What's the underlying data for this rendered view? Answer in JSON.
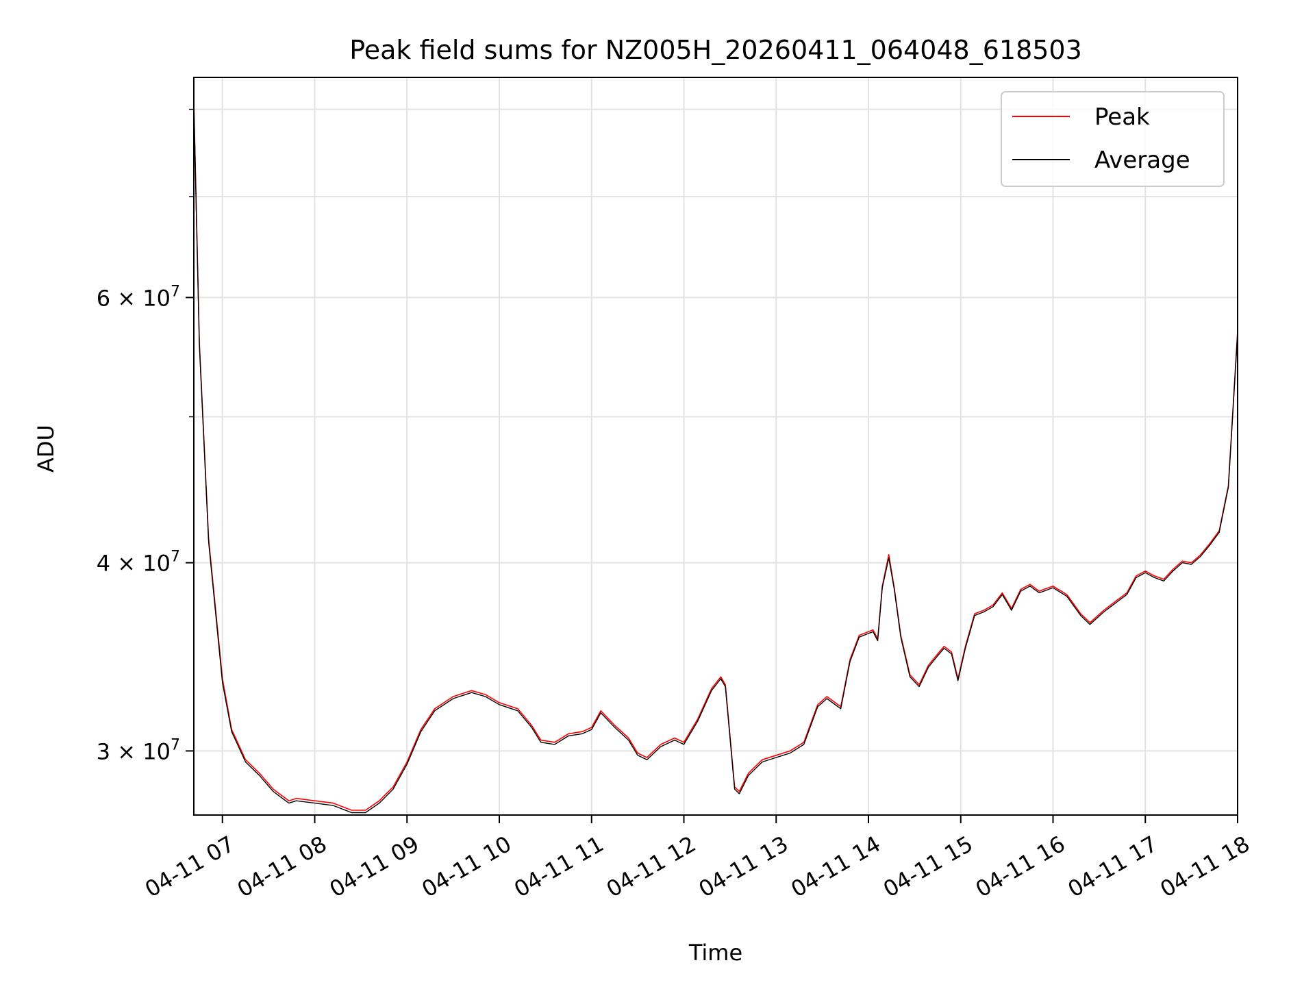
{
  "chart_data": {
    "type": "line",
    "title": "Peak field sums for NZ005H_20260411_064048_618503",
    "xlabel": "Time",
    "ylabel": "ADU",
    "yscale": "log",
    "grid": true,
    "legend_position": "top-right",
    "x_unit": "hours since 2026-04-11 00:00",
    "xlim": [
      6.69,
      18.0
    ],
    "ylim": [
      27200000,
      84000000
    ],
    "x_ticks": [
      7,
      8,
      9,
      10,
      11,
      12,
      13,
      14,
      15,
      16,
      17,
      18
    ],
    "x_tick_labels": [
      "04-11 07",
      "04-11 08",
      "04-11 09",
      "04-11 10",
      "04-11 11",
      "04-11 12",
      "04-11 13",
      "04-11 14",
      "04-11 15",
      "04-11 16",
      "04-11 17",
      "04-11 18"
    ],
    "y_ticks": [
      {
        "value": 30000000,
        "mantissa": "3",
        "exponent": "7"
      },
      {
        "value": 40000000,
        "mantissa": "4",
        "exponent": "7"
      },
      {
        "value": 60000000,
        "mantissa": "6",
        "exponent": "7"
      }
    ],
    "y_minor_ticks": [
      50000000,
      70000000,
      80000000
    ],
    "times_symbol": "×",
    "base_ten": "10",
    "series": [
      {
        "name": "Peak",
        "color": "#ff0000",
        "x": [
          6.69,
          6.75,
          6.85,
          7.0,
          7.1,
          7.25,
          7.4,
          7.55,
          7.65,
          7.72,
          7.8,
          8.0,
          8.2,
          8.4,
          8.55,
          8.7,
          8.85,
          9.0,
          9.15,
          9.3,
          9.5,
          9.7,
          9.85,
          10.0,
          10.2,
          10.35,
          10.45,
          10.6,
          10.75,
          10.9,
          11.0,
          11.1,
          11.25,
          11.4,
          11.5,
          11.6,
          11.75,
          11.9,
          12.0,
          12.15,
          12.3,
          12.4,
          12.45,
          12.55,
          12.6,
          12.7,
          12.85,
          13.0,
          13.15,
          13.3,
          13.45,
          13.55,
          13.7,
          13.8,
          13.9,
          14.0,
          14.05,
          14.1,
          14.15,
          14.22,
          14.28,
          14.35,
          14.45,
          14.55,
          14.65,
          14.75,
          14.82,
          14.9,
          14.97,
          15.05,
          15.15,
          15.25,
          15.35,
          15.45,
          15.55,
          15.65,
          15.75,
          15.85,
          16.0,
          16.15,
          16.3,
          16.4,
          16.55,
          16.7,
          16.8,
          16.9,
          17.0,
          17.1,
          17.2,
          17.3,
          17.4,
          17.5,
          17.6,
          17.7,
          17.8,
          17.9,
          18.0
        ],
        "y": [
          81000000,
          56000000,
          41500000,
          33500000,
          31000000,
          29600000,
          29000000,
          28300000,
          28000000,
          27800000,
          27900000,
          27800000,
          27700000,
          27400000,
          27400000,
          27800000,
          28400000,
          29500000,
          31000000,
          32000000,
          32600000,
          32900000,
          32700000,
          32300000,
          32000000,
          31200000,
          30500000,
          30400000,
          30800000,
          30900000,
          31100000,
          31900000,
          31200000,
          30600000,
          29900000,
          29700000,
          30300000,
          30600000,
          30400000,
          31500000,
          33000000,
          33600000,
          33200000,
          28400000,
          28200000,
          29000000,
          29600000,
          29800000,
          30000000,
          30400000,
          32200000,
          32600000,
          32100000,
          34500000,
          35800000,
          36000000,
          36100000,
          35600000,
          38600000,
          40500000,
          38500000,
          35800000,
          33700000,
          33200000,
          34200000,
          34800000,
          35200000,
          34900000,
          33500000,
          35200000,
          37000000,
          37200000,
          37500000,
          38200000,
          37300000,
          38400000,
          38700000,
          38300000,
          38600000,
          38100000,
          37000000,
          36500000,
          37200000,
          37800000,
          38200000,
          39200000,
          39500000,
          39200000,
          39000000,
          39600000,
          40100000,
          40000000,
          40500000,
          41200000,
          42000000,
          45000000,
          57000000
        ]
      },
      {
        "name": "Average",
        "color": "#000000",
        "x": [
          6.69,
          6.75,
          6.85,
          7.0,
          7.1,
          7.25,
          7.4,
          7.55,
          7.65,
          7.72,
          7.8,
          8.0,
          8.2,
          8.4,
          8.55,
          8.7,
          8.85,
          9.0,
          9.15,
          9.3,
          9.5,
          9.7,
          9.85,
          10.0,
          10.2,
          10.35,
          10.45,
          10.6,
          10.75,
          10.9,
          11.0,
          11.1,
          11.25,
          11.4,
          11.5,
          11.6,
          11.75,
          11.9,
          12.0,
          12.15,
          12.3,
          12.4,
          12.45,
          12.55,
          12.6,
          12.7,
          12.85,
          13.0,
          13.15,
          13.3,
          13.45,
          13.55,
          13.7,
          13.8,
          13.9,
          14.0,
          14.05,
          14.1,
          14.15,
          14.22,
          14.28,
          14.35,
          14.45,
          14.55,
          14.65,
          14.75,
          14.82,
          14.9,
          14.97,
          15.05,
          15.15,
          15.25,
          15.35,
          15.45,
          15.55,
          15.65,
          15.75,
          15.85,
          16.0,
          16.15,
          16.3,
          16.4,
          16.55,
          16.7,
          16.8,
          16.9,
          17.0,
          17.1,
          17.2,
          17.3,
          17.4,
          17.5,
          17.6,
          17.7,
          17.8,
          17.9,
          18.0
        ],
        "y": [
          80800000,
          55800000,
          41300000,
          33300000,
          30900000,
          29500000,
          28900000,
          28200000,
          27900000,
          27700000,
          27800000,
          27700000,
          27600000,
          27300000,
          27300000,
          27700000,
          28300000,
          29400000,
          30900000,
          31900000,
          32500000,
          32800000,
          32600000,
          32200000,
          31900000,
          31100000,
          30400000,
          30300000,
          30700000,
          30800000,
          31000000,
          31800000,
          31100000,
          30500000,
          29800000,
          29600000,
          30200000,
          30500000,
          30300000,
          31400000,
          32900000,
          33500000,
          33100000,
          28300000,
          28100000,
          28900000,
          29500000,
          29700000,
          29900000,
          30300000,
          32100000,
          32500000,
          32000000,
          34400000,
          35700000,
          35900000,
          36000000,
          35500000,
          38500000,
          40300000,
          38400000,
          35700000,
          33600000,
          33100000,
          34100000,
          34700000,
          35100000,
          34800000,
          33400000,
          35100000,
          36900000,
          37100000,
          37400000,
          38100000,
          37200000,
          38300000,
          38600000,
          38200000,
          38500000,
          38000000,
          36900000,
          36400000,
          37100000,
          37700000,
          38100000,
          39100000,
          39400000,
          39100000,
          38900000,
          39500000,
          40000000,
          39900000,
          40400000,
          41100000,
          41900000,
          44900000,
          56800000
        ]
      }
    ]
  }
}
